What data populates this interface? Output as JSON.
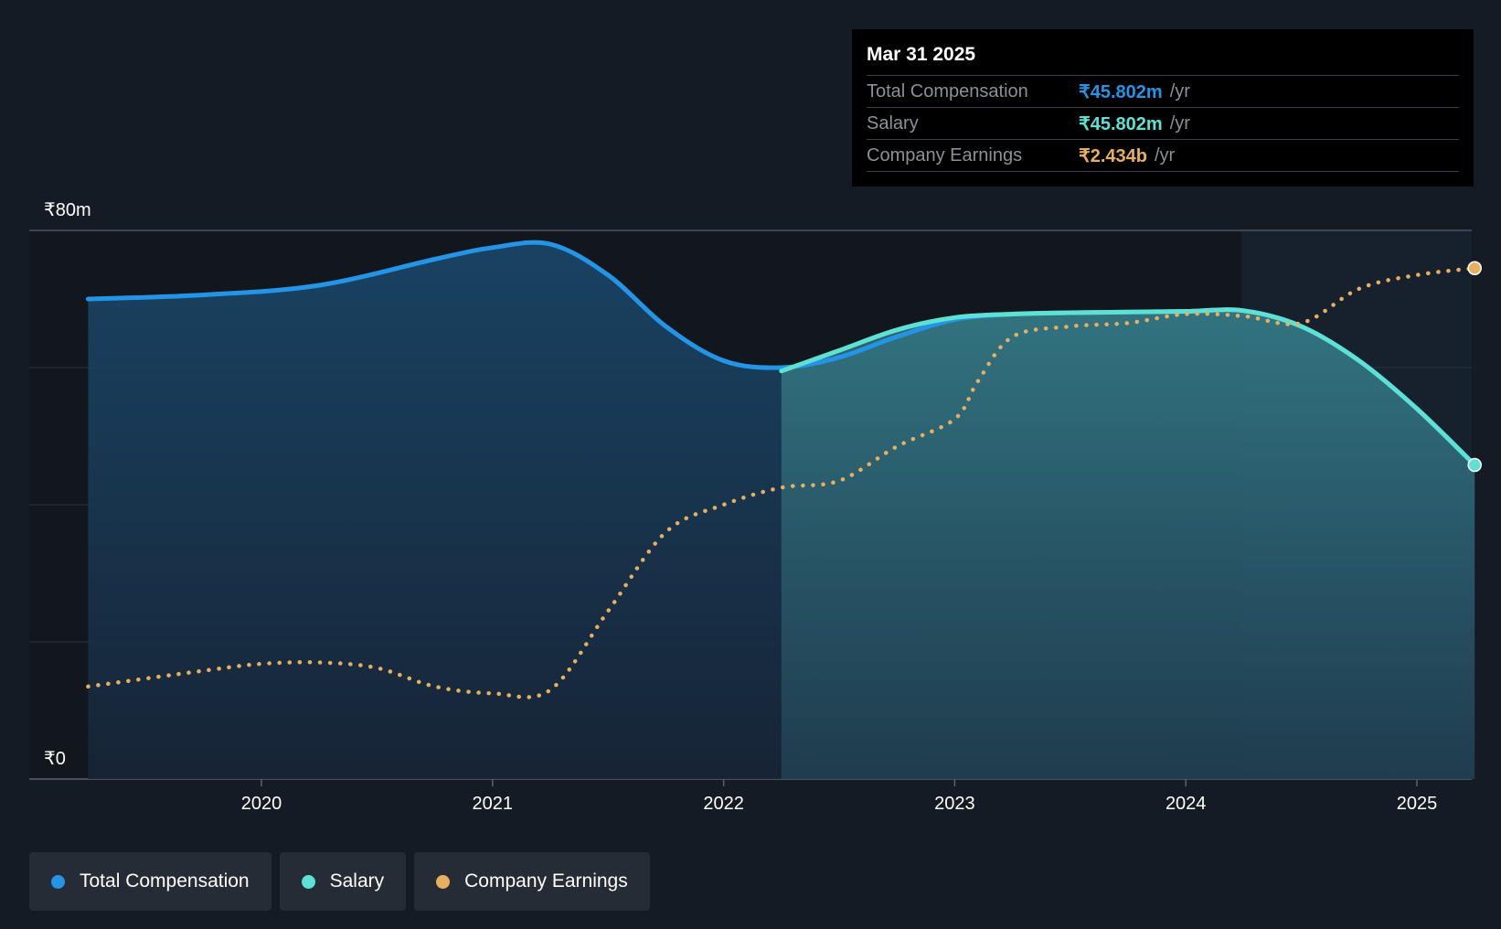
{
  "tooltip": {
    "date": "Mar 31 2025",
    "rows": [
      {
        "label": "Total Compensation",
        "value": "₹45.802m",
        "unit": "/yr",
        "color": "#2394e6"
      },
      {
        "label": "Salary",
        "value": "₹45.802m",
        "unit": "/yr",
        "color": "#5ce1d3"
      },
      {
        "label": "Company Earnings",
        "value": "₹2.434b",
        "unit": "/yr",
        "color": "#e8b05e"
      }
    ]
  },
  "legend": [
    {
      "label": "Total Compensation",
      "color": "#2394e6"
    },
    {
      "label": "Salary",
      "color": "#5ce1d3"
    },
    {
      "label": "Company Earnings",
      "color": "#e8b05e"
    }
  ],
  "chart_data": {
    "type": "area",
    "y_top_label": "₹80m",
    "y_bottom_label": "₹0",
    "ylim": [
      0,
      80
    ],
    "y_unit": "₹m",
    "x_ticks": [
      "2020",
      "2021",
      "2022",
      "2023",
      "2024",
      "2025"
    ],
    "xlim": [
      2019.25,
      2025.25
    ],
    "grid": true,
    "series": [
      {
        "name": "Total Compensation",
        "color": "#2394e6",
        "x": [
          2019.25,
          2019.75,
          2020.25,
          2020.75,
          2021.0,
          2021.25,
          2021.5,
          2021.75,
          2022.0,
          2022.25,
          2022.5,
          2022.75,
          2023.0,
          2023.25,
          2023.5,
          2023.75,
          2024.0,
          2024.25,
          2024.5,
          2024.75,
          2025.0,
          2025.25
        ],
        "y": [
          70.0,
          70.6,
          72.0,
          75.8,
          77.5,
          78.0,
          73.5,
          66.0,
          61.0,
          60.0,
          61.5,
          64.5,
          67.0,
          67.8,
          68.0,
          68.1,
          68.2,
          68.3,
          66.0,
          61.0,
          54.0,
          45.8
        ]
      },
      {
        "name": "Salary",
        "color": "#5ce1d3",
        "x": [
          2022.25,
          2022.5,
          2022.75,
          2023.0,
          2023.25,
          2023.5,
          2023.75,
          2024.0,
          2024.25,
          2024.5,
          2024.75,
          2025.0,
          2025.25
        ],
        "y": [
          59.5,
          62.5,
          65.5,
          67.3,
          67.8,
          68.0,
          68.1,
          68.2,
          68.3,
          66.0,
          61.0,
          54.0,
          45.8
        ]
      },
      {
        "name": "Company Earnings",
        "color": "#e8b05e",
        "x": [
          2019.25,
          2019.75,
          2020.0,
          2020.25,
          2020.5,
          2020.75,
          2021.0,
          2021.25,
          2021.5,
          2021.75,
          2022.0,
          2022.25,
          2022.5,
          2022.75,
          2023.0,
          2023.1,
          2023.25,
          2023.5,
          2023.75,
          2024.0,
          2024.25,
          2024.5,
          2024.75,
          2025.0,
          2025.25
        ],
        "y": [
          13.5,
          15.8,
          16.8,
          17.0,
          16.2,
          13.5,
          12.5,
          13.0,
          24.5,
          36.0,
          40.0,
          42.5,
          43.5,
          48.5,
          52.5,
          58.0,
          64.5,
          66.0,
          66.5,
          67.8,
          67.5,
          66.5,
          71.5,
          73.5,
          74.5
        ]
      }
    ]
  }
}
